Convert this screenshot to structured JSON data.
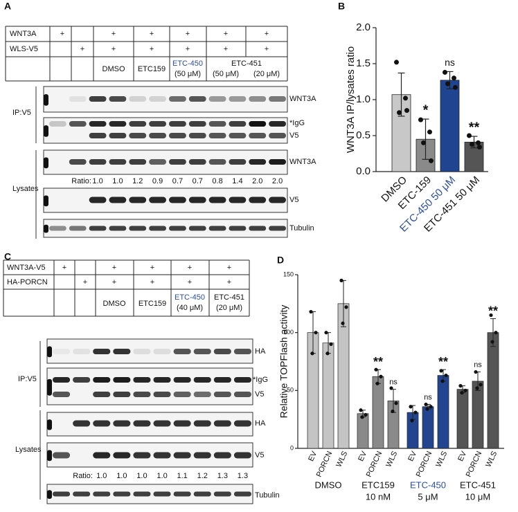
{
  "panels": {
    "A": {
      "label": "A",
      "table": {
        "row_labels": [
          "WNT3A",
          "WLS-V5"
        ],
        "wnt3a": [
          "+",
          "+",
          "+",
          "+",
          "+",
          "+"
        ],
        "wls": [
          "+",
          "+",
          "+",
          "+",
          "+",
          "+"
        ],
        "treatments": [
          "DMSO",
          "ETC159"
        ],
        "etc450": {
          "name": "ETC-450",
          "dose": "(50 μM)"
        },
        "etc451": {
          "name": "ETC-451",
          "doses": [
            "(50 μM)",
            "(20 μM)"
          ]
        }
      },
      "blot": {
        "ip_label": "IP:V5",
        "lysates_label": "Lysates",
        "bands": [
          "WNT3A",
          "*IgG",
          "V5",
          "WNT3A",
          "V5",
          "Tubulin"
        ],
        "ratio_label": "Ratio:",
        "ratios": [
          "1.0",
          "1.0",
          "1.2",
          "0.9",
          "0.7",
          "0.7",
          "0.8",
          "1.4",
          "2.0",
          "2.0"
        ]
      }
    },
    "B": {
      "label": "B"
    },
    "C": {
      "label": "C",
      "table": {
        "row_labels": [
          "WNT3A-V5",
          "HA-PORCN"
        ],
        "wnt3a": [
          "+",
          "+",
          "+",
          "+",
          "+"
        ],
        "porcn": [
          "+",
          "+",
          "+",
          "+",
          "+"
        ],
        "treatments": [
          "DMSO",
          "ETC159"
        ],
        "etc450": {
          "name": "ETC-450",
          "dose": "(40 μM)"
        },
        "etc451": {
          "name": "ETC-451",
          "dose": "(20 μM)"
        }
      },
      "blot": {
        "ip_label": "IP:V5",
        "lysates_label": "Lysates",
        "bands": [
          "HA",
          "*IgG",
          "V5",
          "HA",
          "V5",
          "Tubulin"
        ],
        "ratio_label": "Ratio:",
        "ratios": [
          "1.0",
          "1.0",
          "1.0",
          "1.0",
          "1.1",
          "1.2",
          "1.3",
          "1.3"
        ]
      }
    },
    "D": {
      "label": "D"
    }
  },
  "chart_data": [
    {
      "type": "bar",
      "ylabel": "WNT3A IP/lysates ratio",
      "categories": [
        "DMSO",
        "ETC-159",
        "ETC-450 50 μM",
        "ETC-451 50 μM"
      ],
      "values": [
        1.07,
        0.45,
        1.27,
        0.41
      ],
      "errors": [
        0.3,
        0.28,
        0.12,
        0.08
      ],
      "points": [
        [
          1.52,
          1.02,
          0.82,
          0.85
        ],
        [
          0.72,
          0.55,
          0.4,
          0.15
        ],
        [
          1.38,
          1.3,
          1.22,
          1.17
        ],
        [
          0.5,
          0.4,
          0.38,
          0.34
        ]
      ],
      "colors": [
        "#c8c8c8",
        "#8a8a8a",
        "#1f4591",
        "#555555"
      ],
      "label_colors": [
        "#111111",
        "#111111",
        "#2b4f9a",
        "#111111"
      ],
      "annotations": [
        null,
        "*",
        "ns",
        "**"
      ],
      "ylim": [
        0,
        2
      ],
      "yticks": [
        {
          "value": 0,
          "label": "0.0"
        },
        0.5,
        {
          "value": 1,
          "label": "1.0"
        },
        1.5,
        {
          "value": 2,
          "label": "2.0"
        }
      ]
    },
    {
      "type": "grouped_bar",
      "ylabel": "Relative TOPFlash activity",
      "subcategories": [
        "EV",
        "PORCN",
        "WLS"
      ],
      "groups": [
        {
          "name": "DMSO",
          "color": "#c4c4c4",
          "label_color": "#111111",
          "values": [
            100,
            91,
            125
          ],
          "errors": [
            18,
            9,
            20
          ],
          "points": [
            [
              118,
              100,
              82
            ],
            [
              100,
              90,
              82
            ],
            [
              145,
              122,
              108
            ]
          ],
          "annotations": [
            null,
            null,
            null
          ]
        },
        {
          "name": "ETC159",
          "dose": "10 nM",
          "color": "#8a8a8a",
          "label_color": "#111111",
          "values": [
            30,
            62,
            41
          ],
          "errors": [
            3,
            6,
            10
          ],
          "points": [
            [
              33,
              29,
              27
            ],
            [
              68,
              62,
              56
            ],
            [
              52,
              39,
              32
            ]
          ],
          "annotations": [
            null,
            "**",
            "ns"
          ]
        },
        {
          "name": "ETC-450",
          "dose": "5 μM",
          "color": "#23458f",
          "label_color": "#2b4f9a",
          "values": [
            31,
            36,
            63
          ],
          "errors": [
            6,
            2,
            5
          ],
          "points": [
            [
              36,
              31,
              24
            ],
            [
              38,
              36,
              34
            ],
            [
              67,
              63,
              58
            ]
          ],
          "annotations": [
            null,
            "ns",
            "**"
          ]
        },
        {
          "name": "ETC-451",
          "dose": "10 μM",
          "color": "#555555",
          "label_color": "#111111",
          "values": [
            51,
            58,
            100
          ],
          "errors": [
            3,
            8,
            12
          ],
          "points": [
            [
              54,
              50,
              48
            ],
            [
              66,
              55,
              52
            ],
            [
              115,
              100,
              92
            ]
          ],
          "annotations": [
            null,
            "ns",
            "**"
          ]
        }
      ],
      "ylim": [
        0,
        150
      ],
      "yticks": [
        0,
        50,
        100,
        150
      ]
    }
  ]
}
